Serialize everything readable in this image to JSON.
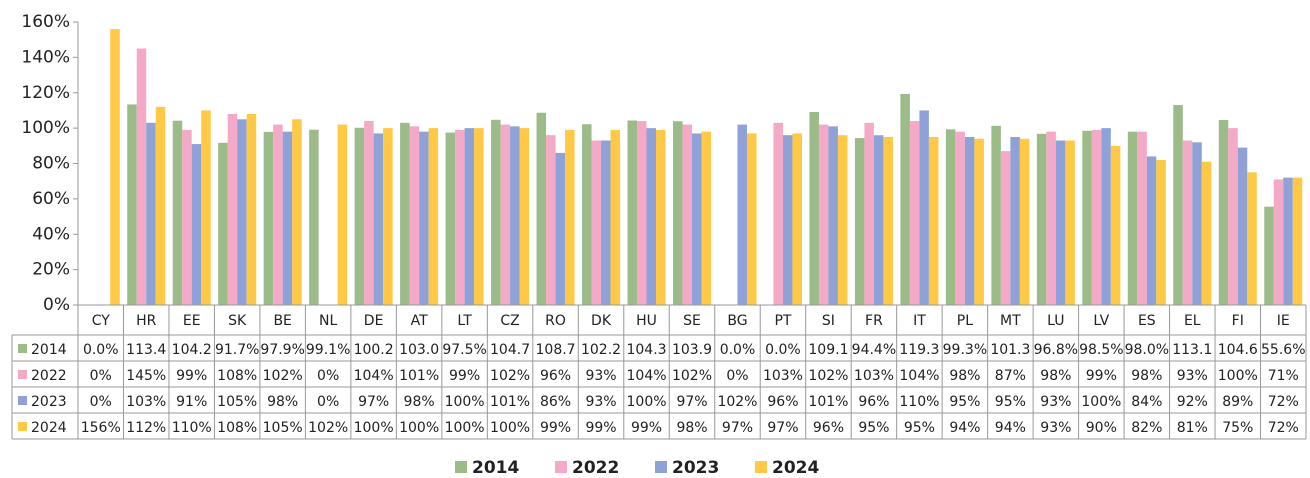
{
  "chart_data": {
    "type": "bar",
    "categories": [
      "CY",
      "HR",
      "EE",
      "SK",
      "BE",
      "NL",
      "DE",
      "AT",
      "LT",
      "CZ",
      "RO",
      "DK",
      "HU",
      "SE",
      "BG",
      "PT",
      "SI",
      "FR",
      "IT",
      "PL",
      "MT",
      "LU",
      "LV",
      "ES",
      "EL",
      "FI",
      "IE"
    ],
    "series": [
      {
        "name": "2014",
        "color": "#9bbb89",
        "values": [
          0,
          113.4,
          104.2,
          91.7,
          97.9,
          99.1,
          100.2,
          103.0,
          97.5,
          104.7,
          108.7,
          102.2,
          104.3,
          103.9,
          0,
          0,
          109.1,
          94.4,
          119.3,
          99.3,
          101.3,
          96.8,
          98.5,
          98.0,
          113.1,
          104.6,
          55.6
        ],
        "value_labels": [
          "0.0%",
          "113.4",
          "104.2",
          "91.7%",
          "97.9%",
          "99.1%",
          "100.2",
          "103.0",
          "97.5%",
          "104.7",
          "108.7",
          "102.2",
          "104.3",
          "103.9",
          "0.0%",
          "0.0%",
          "109.1",
          "94.4%",
          "119.3",
          "99.3%",
          "101.3",
          "96.8%",
          "98.5%",
          "98.0%",
          "113.1",
          "104.6",
          "55.6%"
        ]
      },
      {
        "name": "2022",
        "color": "#f4a9c6",
        "values": [
          0,
          145,
          99,
          108,
          102,
          0,
          104,
          101,
          99,
          102,
          96,
          93,
          104,
          102,
          0,
          103,
          102,
          103,
          104,
          98,
          87,
          98,
          99,
          98,
          93,
          100,
          71
        ],
        "value_labels": [
          "0%",
          "145%",
          "99%",
          "108%",
          "102%",
          "0%",
          "104%",
          "101%",
          "99%",
          "102%",
          "96%",
          "93%",
          "104%",
          "102%",
          "0%",
          "103%",
          "102%",
          "103%",
          "104%",
          "98%",
          "87%",
          "98%",
          "99%",
          "98%",
          "93%",
          "100%",
          "71%"
        ]
      },
      {
        "name": "2023",
        "color": "#8fa2d8",
        "values": [
          0,
          103,
          91,
          105,
          98,
          0,
          97,
          98,
          100,
          101,
          86,
          93,
          100,
          97,
          102,
          96,
          101,
          96,
          110,
          95,
          95,
          93,
          100,
          84,
          92,
          89,
          72
        ],
        "value_labels": [
          "0%",
          "103%",
          "91%",
          "105%",
          "98%",
          "0%",
          "97%",
          "98%",
          "100%",
          "101%",
          "86%",
          "93%",
          "100%",
          "97%",
          "102%",
          "96%",
          "101%",
          "96%",
          "110%",
          "95%",
          "95%",
          "93%",
          "100%",
          "84%",
          "92%",
          "89%",
          "72%"
        ]
      },
      {
        "name": "2024",
        "color": "#ffc845",
        "values": [
          156,
          112,
          110,
          108,
          105,
          102,
          100,
          100,
          100,
          100,
          99,
          99,
          99,
          98,
          97,
          97,
          96,
          95,
          95,
          94,
          94,
          93,
          90,
          82,
          81,
          75,
          72
        ],
        "value_labels": [
          "156%",
          "112%",
          "110%",
          "108%",
          "105%",
          "102%",
          "100%",
          "100%",
          "100%",
          "100%",
          "99%",
          "99%",
          "99%",
          "98%",
          "97%",
          "97%",
          "96%",
          "95%",
          "95%",
          "94%",
          "94%",
          "93%",
          "90%",
          "82%",
          "81%",
          "75%",
          "72%"
        ]
      }
    ],
    "ylim": [
      0,
      160
    ],
    "yticks": [
      {
        "value": 0,
        "label": "0%"
      },
      {
        "value": 20,
        "label": "20%"
      },
      {
        "value": 40,
        "label": "40%"
      },
      {
        "value": 60,
        "label": "60%"
      },
      {
        "value": 80,
        "label": "80%"
      },
      {
        "value": 100,
        "label": "100%"
      },
      {
        "value": 120,
        "label": "120%"
      },
      {
        "value": 140,
        "label": "140%"
      },
      {
        "value": 160,
        "label": "160%"
      }
    ],
    "grid": false,
    "legend": "bottom"
  }
}
